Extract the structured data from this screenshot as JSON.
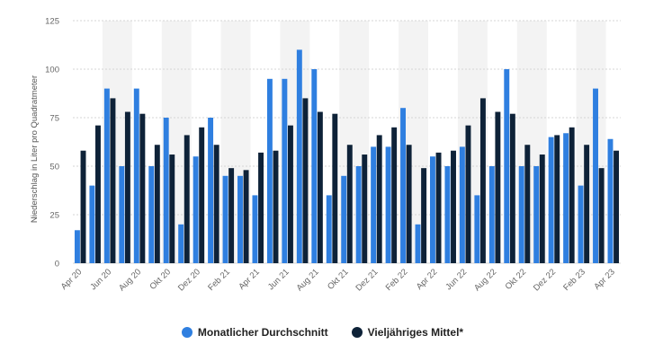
{
  "chart_data": {
    "type": "bar",
    "ylabel": "Niederschlag in Liter pro Quadratmeter",
    "ylim": [
      0,
      125
    ],
    "yticks": [
      0,
      25,
      50,
      75,
      100,
      125
    ],
    "grid": true,
    "legend_position": "bottom",
    "x_tick_labels": [
      "Apr 20",
      "Jun 20",
      "Aug 20",
      "Okt 20",
      "Dez 20",
      "Feb 21",
      "Apr 21",
      "Jun 21",
      "Aug 21",
      "Okt 21",
      "Dez 21",
      "Feb 22",
      "Apr 22",
      "Jun 22",
      "Aug 22",
      "Okt 22",
      "Dez 22",
      "Feb 23",
      "Apr 23"
    ],
    "categories": [
      "Apr 20",
      "Mai 20",
      "Jun 20",
      "Jul 20",
      "Aug 20",
      "Sep 20",
      "Okt 20",
      "Nov 20",
      "Dez 20",
      "Jan 21",
      "Feb 21",
      "Mär 21",
      "Apr 21",
      "Mai 21",
      "Jun 21",
      "Jul 21",
      "Aug 21",
      "Sep 21",
      "Okt 21",
      "Nov 21",
      "Dez 21",
      "Jan 22",
      "Feb 22",
      "Mär 22",
      "Apr 22",
      "Mai 22",
      "Jun 22",
      "Jul 22",
      "Aug 22",
      "Sep 22",
      "Okt 22",
      "Nov 22",
      "Dez 22",
      "Jan 23",
      "Feb 23",
      "Mär 23",
      "Apr 23"
    ],
    "series": [
      {
        "name": "Monatlicher Durchschnitt",
        "color": "#2f7fe0",
        "values": [
          17,
          40,
          90,
          50,
          90,
          50,
          75,
          20,
          55,
          75,
          45,
          45,
          35,
          95,
          95,
          110,
          100,
          35,
          45,
          50,
          60,
          60,
          80,
          20,
          55,
          50,
          60,
          35,
          50,
          100,
          50,
          50,
          65,
          67,
          40,
          90,
          64
        ]
      },
      {
        "name": "Vieljähriges Mittel*",
        "color": "#0e2238",
        "values": [
          58,
          71,
          85,
          78,
          77,
          61,
          56,
          66,
          70,
          61,
          49,
          48,
          57,
          58,
          71,
          85,
          78,
          77,
          61,
          56,
          66,
          70,
          61,
          49,
          57,
          58,
          71,
          85,
          78,
          77,
          61,
          56,
          66,
          70,
          61,
          49,
          58
        ]
      }
    ]
  }
}
